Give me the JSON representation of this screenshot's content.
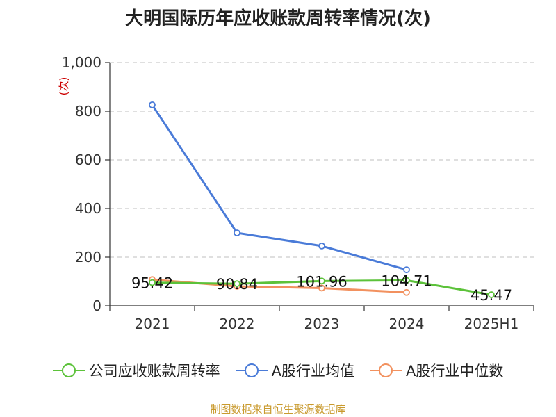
{
  "colors": {
    "company": "#5cc23a",
    "avg": "#4a7bd8",
    "median": "#f2915f",
    "grid": "#cccccc",
    "ylabel": "#cc0000",
    "source": "#c99a2e"
  },
  "chart_data": {
    "type": "line",
    "title": "大明国际历年应收账款周转率情况(次)",
    "ylabel": "(次)",
    "xlabel": "",
    "categories": [
      "2021",
      "2022",
      "2023",
      "2024",
      "2025H1"
    ],
    "ylim": [
      0,
      1000
    ],
    "yticks": [
      0,
      200,
      400,
      600,
      800,
      1000
    ],
    "ytick_labels": [
      "0",
      "200",
      "400",
      "600",
      "800",
      "1,000"
    ],
    "grid": true,
    "legend": "bottom",
    "series": [
      {
        "name": "公司应收账款周转率",
        "color_key": "company",
        "values": [
          95.42,
          90.84,
          101.96,
          104.71,
          45.47
        ],
        "labels": [
          "95.42",
          "90.84",
          "101.96",
          "104.71",
          "45.47"
        ]
      },
      {
        "name": "A股行业均值",
        "color_key": "avg",
        "values": [
          826,
          300,
          246,
          148,
          null
        ]
      },
      {
        "name": "A股行业中位数",
        "color_key": "median",
        "values": [
          108,
          80,
          73,
          55,
          null
        ]
      }
    ]
  },
  "source": "制图数据来自恒生聚源数据库"
}
